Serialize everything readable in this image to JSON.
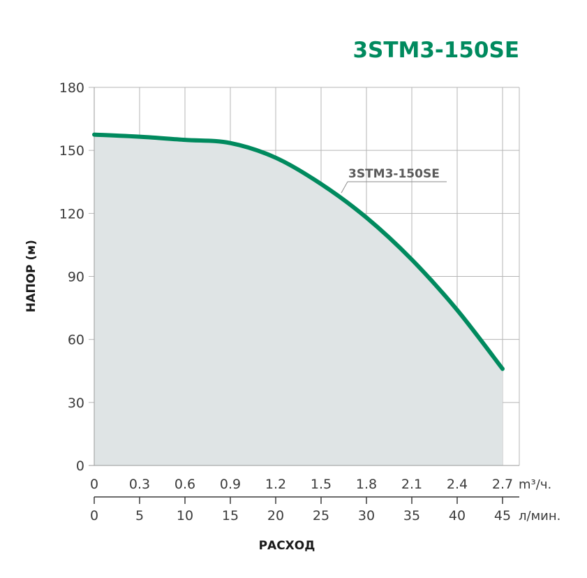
{
  "chart_data": {
    "type": "area",
    "title": "3STM3-150SE",
    "ylabel": "НАПОР (м)",
    "xlabel": "РАСХОД",
    "ylim": [
      0,
      180
    ],
    "y_ticks": [
      0,
      30,
      60,
      90,
      120,
      150,
      180
    ],
    "x_primary": {
      "unit": "m³/ч.",
      "range": [
        0,
        2.8
      ],
      "ticks": [
        "0",
        "0.3",
        "0.6",
        "0.9",
        "1.2",
        "1.5",
        "1.8",
        "2.1",
        "2.4",
        "2.7"
      ]
    },
    "x_secondary": {
      "unit": "л/мин.",
      "ticks": [
        "0",
        "5",
        "10",
        "15",
        "20",
        "25",
        "30",
        "35",
        "40",
        "45"
      ]
    },
    "grid": true,
    "series": [
      {
        "name": "3STM3-150SE",
        "x": [
          0,
          0.3,
          0.6,
          0.9,
          1.2,
          1.5,
          1.8,
          2.1,
          2.4,
          2.7
        ],
        "values": [
          157.5,
          156.5,
          155,
          153.5,
          146.5,
          134,
          118,
          98,
          74,
          46
        ]
      }
    ],
    "colors": {
      "line": "#008a5e",
      "fill": "#dfe4e5",
      "grid": "#b5b5b5",
      "title": "#008a5e"
    }
  }
}
